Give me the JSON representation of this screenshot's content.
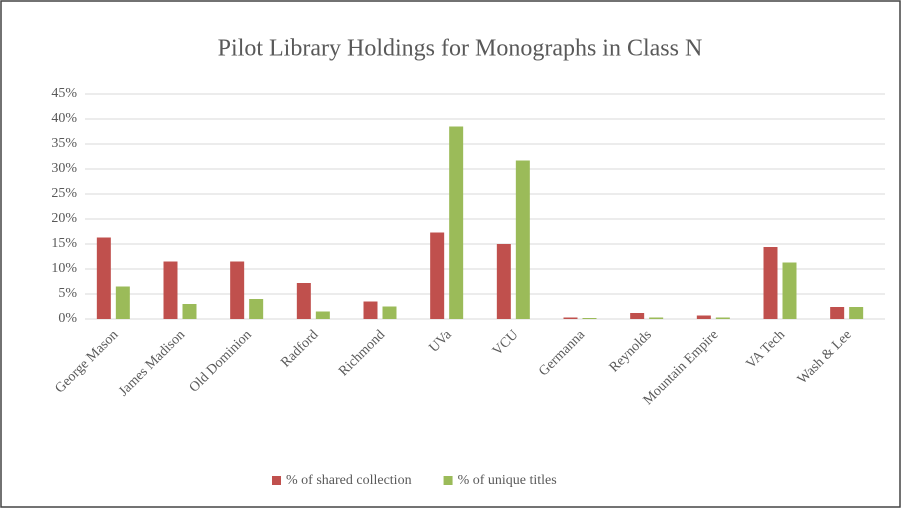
{
  "chart_data": {
    "type": "bar",
    "title": "Pilot Library Holdings for Monographs in Class N",
    "categories": [
      "George Mason",
      "James Madison",
      "Old Dominion",
      "Radford",
      "Richmond",
      "UVa",
      "VCU",
      "Germanna",
      "Reynolds",
      "Mountain Empire",
      "VA Tech",
      "Wash & Lee"
    ],
    "series": [
      {
        "name": "% of shared collection",
        "color": "#c0504d",
        "values": [
          16.3,
          11.5,
          11.5,
          7.2,
          3.5,
          17.3,
          15,
          0.3,
          1.2,
          0.7,
          14.4,
          2.4
        ]
      },
      {
        "name": "% of unique titles",
        "color": "#9bbb59",
        "values": [
          6.5,
          3,
          4,
          1.5,
          2.5,
          38.5,
          31.7,
          0.2,
          0.3,
          0.3,
          11.3,
          2.4
        ]
      }
    ],
    "ylim": [
      0,
      45
    ],
    "yticks": [
      {
        "value": 0,
        "label": "0%"
      },
      {
        "value": 5,
        "label": "5%"
      },
      {
        "value": 10,
        "label": "10%"
      },
      {
        "value": 15,
        "label": "15%"
      },
      {
        "value": 20,
        "label": "20%"
      },
      {
        "value": 25,
        "label": "25%"
      },
      {
        "value": 30,
        "label": "30%"
      },
      {
        "value": 35,
        "label": "35%"
      },
      {
        "value": 40,
        "label": "40%"
      },
      {
        "value": 45,
        "label": "45%"
      }
    ],
    "grid": true,
    "legend": "bottom"
  }
}
